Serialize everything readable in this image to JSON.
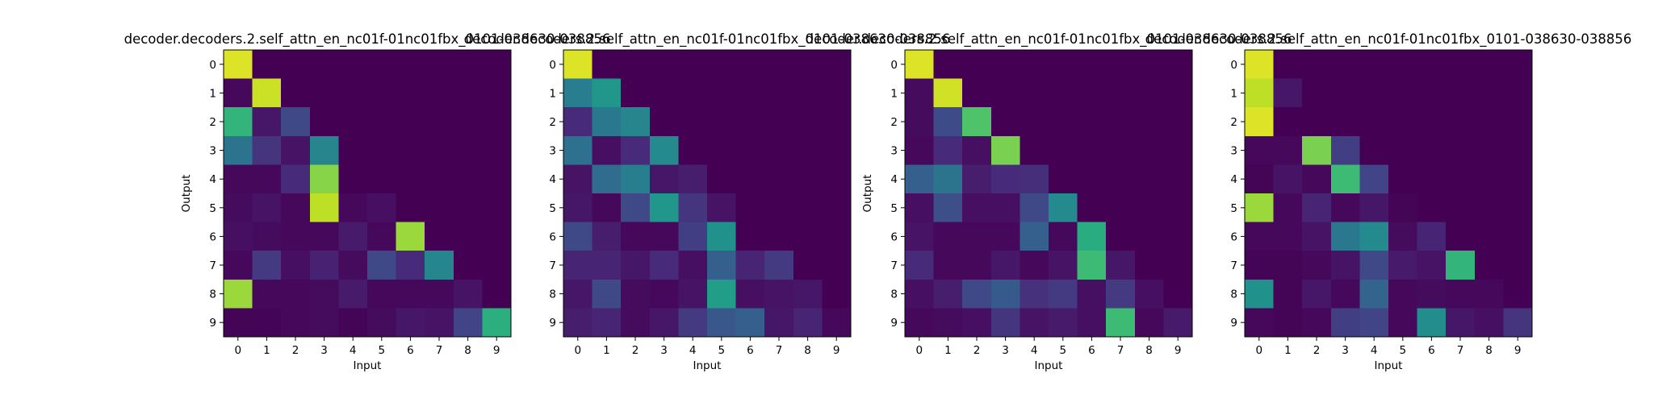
{
  "chart_data": [
    {
      "type": "heatmap",
      "title": "decoder.decoders.2.self_attn_en_nc01f-01nc01fbx_0101-038630-038856",
      "xlabel": "Input",
      "ylabel": "Output",
      "x_ticks": [
        "0",
        "1",
        "2",
        "3",
        "4",
        "5",
        "6",
        "7",
        "8",
        "9"
      ],
      "y_ticks": [
        "0",
        "1",
        "2",
        "3",
        "4",
        "5",
        "6",
        "7",
        "8",
        "9"
      ],
      "vmin": 0,
      "vmax": 1,
      "colormap": "viridis",
      "values": [
        [
          0.95,
          0.0,
          0.0,
          0.0,
          0.0,
          0.0,
          0.0,
          0.0,
          0.0,
          0.0
        ],
        [
          0.02,
          0.92,
          0.0,
          0.0,
          0.0,
          0.0,
          0.0,
          0.0,
          0.0,
          0.0
        ],
        [
          0.65,
          0.06,
          0.22,
          0.0,
          0.0,
          0.0,
          0.0,
          0.0,
          0.0,
          0.0
        ],
        [
          0.38,
          0.15,
          0.05,
          0.45,
          0.0,
          0.0,
          0.0,
          0.0,
          0.0,
          0.0
        ],
        [
          0.02,
          0.02,
          0.12,
          0.82,
          0.0,
          0.0,
          0.0,
          0.0,
          0.0,
          0.0
        ],
        [
          0.03,
          0.05,
          0.02,
          0.9,
          0.02,
          0.04,
          0.0,
          0.0,
          0.0,
          0.0
        ],
        [
          0.04,
          0.03,
          0.02,
          0.02,
          0.07,
          0.02,
          0.85,
          0.0,
          0.0,
          0.0
        ],
        [
          0.02,
          0.17,
          0.04,
          0.09,
          0.03,
          0.22,
          0.12,
          0.46,
          0.0,
          0.0
        ],
        [
          0.85,
          0.02,
          0.02,
          0.03,
          0.07,
          0.02,
          0.02,
          0.02,
          0.05,
          0.0
        ],
        [
          0.01,
          0.01,
          0.02,
          0.03,
          0.01,
          0.03,
          0.06,
          0.05,
          0.2,
          0.63
        ]
      ]
    },
    {
      "type": "heatmap",
      "title": "decoder.decoders.2.self_attn_en_nc01f-01nc01fbx_0101-038630-038856",
      "xlabel": "Input",
      "ylabel": "",
      "x_ticks": [
        "0",
        "1",
        "2",
        "3",
        "4",
        "5",
        "6",
        "7",
        "8",
        "9"
      ],
      "y_ticks": [
        "0",
        "1",
        "2",
        "3",
        "4",
        "5",
        "6",
        "7",
        "8",
        "9"
      ],
      "vmin": 0,
      "vmax": 1,
      "colormap": "viridis",
      "values": [
        [
          0.95,
          0.0,
          0.0,
          0.0,
          0.0,
          0.0,
          0.0,
          0.0,
          0.0,
          0.0
        ],
        [
          0.42,
          0.52,
          0.0,
          0.0,
          0.0,
          0.0,
          0.0,
          0.0,
          0.0,
          0.0
        ],
        [
          0.12,
          0.4,
          0.45,
          0.0,
          0.0,
          0.0,
          0.0,
          0.0,
          0.0,
          0.0
        ],
        [
          0.37,
          0.04,
          0.12,
          0.47,
          0.0,
          0.0,
          0.0,
          0.0,
          0.0,
          0.0
        ],
        [
          0.05,
          0.35,
          0.42,
          0.06,
          0.08,
          0.0,
          0.0,
          0.0,
          0.0,
          0.0
        ],
        [
          0.06,
          0.02,
          0.22,
          0.52,
          0.15,
          0.05,
          0.0,
          0.0,
          0.0,
          0.0
        ],
        [
          0.22,
          0.08,
          0.02,
          0.02,
          0.18,
          0.5,
          0.0,
          0.0,
          0.0,
          0.0
        ],
        [
          0.1,
          0.1,
          0.06,
          0.12,
          0.04,
          0.3,
          0.1,
          0.17,
          0.0,
          0.0
        ],
        [
          0.06,
          0.22,
          0.03,
          0.02,
          0.05,
          0.55,
          0.04,
          0.05,
          0.06,
          0.0
        ],
        [
          0.08,
          0.1,
          0.03,
          0.06,
          0.17,
          0.27,
          0.3,
          0.06,
          0.1,
          0.02
        ]
      ]
    },
    {
      "type": "heatmap",
      "title": "decoder.decoders.2.self_attn_en_nc01f-01nc01fbx_0101-038630-038856",
      "xlabel": "Input",
      "ylabel": "Output",
      "x_ticks": [
        "0",
        "1",
        "2",
        "3",
        "4",
        "5",
        "6",
        "7",
        "8",
        "9"
      ],
      "y_ticks": [
        "0",
        "1",
        "2",
        "3",
        "4",
        "5",
        "6",
        "7",
        "8",
        "9"
      ],
      "vmin": 0,
      "vmax": 1,
      "colormap": "viridis",
      "values": [
        [
          0.95,
          0.0,
          0.0,
          0.0,
          0.0,
          0.0,
          0.0,
          0.0,
          0.0,
          0.0
        ],
        [
          0.03,
          0.93,
          0.0,
          0.0,
          0.0,
          0.0,
          0.0,
          0.0,
          0.0,
          0.0
        ],
        [
          0.03,
          0.23,
          0.72,
          0.0,
          0.0,
          0.0,
          0.0,
          0.0,
          0.0,
          0.0
        ],
        [
          0.02,
          0.12,
          0.04,
          0.8,
          0.0,
          0.0,
          0.0,
          0.0,
          0.0,
          0.0
        ],
        [
          0.3,
          0.38,
          0.08,
          0.12,
          0.13,
          0.0,
          0.0,
          0.0,
          0.0,
          0.0
        ],
        [
          0.04,
          0.24,
          0.04,
          0.04,
          0.22,
          0.47,
          0.0,
          0.0,
          0.0,
          0.0
        ],
        [
          0.05,
          0.02,
          0.02,
          0.02,
          0.3,
          0.02,
          0.62,
          0.0,
          0.0,
          0.0
        ],
        [
          0.12,
          0.02,
          0.02,
          0.06,
          0.02,
          0.05,
          0.68,
          0.06,
          0.0,
          0.0
        ],
        [
          0.04,
          0.08,
          0.22,
          0.28,
          0.14,
          0.17,
          0.04,
          0.17,
          0.04,
          0.0
        ],
        [
          0.02,
          0.03,
          0.04,
          0.15,
          0.05,
          0.07,
          0.04,
          0.68,
          0.02,
          0.07
        ]
      ]
    },
    {
      "type": "heatmap",
      "title": "decoder.decoders.2.self_attn_en_nc01f-01nc01fbx_0101-038630-038856",
      "xlabel": "Input",
      "ylabel": "",
      "x_ticks": [
        "0",
        "1",
        "2",
        "3",
        "4",
        "5",
        "6",
        "7",
        "8",
        "9"
      ],
      "y_ticks": [
        "0",
        "1",
        "2",
        "3",
        "4",
        "5",
        "6",
        "7",
        "8",
        "9"
      ],
      "vmin": 0,
      "vmax": 1,
      "colormap": "viridis",
      "values": [
        [
          0.95,
          0.0,
          0.0,
          0.0,
          0.0,
          0.0,
          0.0,
          0.0,
          0.0,
          0.0
        ],
        [
          0.9,
          0.06,
          0.0,
          0.0,
          0.0,
          0.0,
          0.0,
          0.0,
          0.0,
          0.0
        ],
        [
          0.95,
          0.0,
          0.0,
          0.0,
          0.0,
          0.0,
          0.0,
          0.0,
          0.0,
          0.0
        ],
        [
          0.02,
          0.02,
          0.8,
          0.18,
          0.0,
          0.0,
          0.0,
          0.0,
          0.0,
          0.0
        ],
        [
          0.01,
          0.05,
          0.02,
          0.68,
          0.2,
          0.0,
          0.0,
          0.0,
          0.0,
          0.0
        ],
        [
          0.85,
          0.02,
          0.1,
          0.02,
          0.06,
          0.01,
          0.0,
          0.0,
          0.0,
          0.0
        ],
        [
          0.02,
          0.02,
          0.05,
          0.4,
          0.47,
          0.03,
          0.1,
          0.0,
          0.0,
          0.0
        ],
        [
          0.01,
          0.01,
          0.02,
          0.05,
          0.22,
          0.07,
          0.05,
          0.65,
          0.0,
          0.0
        ],
        [
          0.5,
          0.01,
          0.06,
          0.02,
          0.32,
          0.02,
          0.03,
          0.02,
          0.02,
          0.0
        ],
        [
          0.02,
          0.01,
          0.02,
          0.18,
          0.2,
          0.02,
          0.48,
          0.06,
          0.04,
          0.15
        ]
      ]
    }
  ]
}
